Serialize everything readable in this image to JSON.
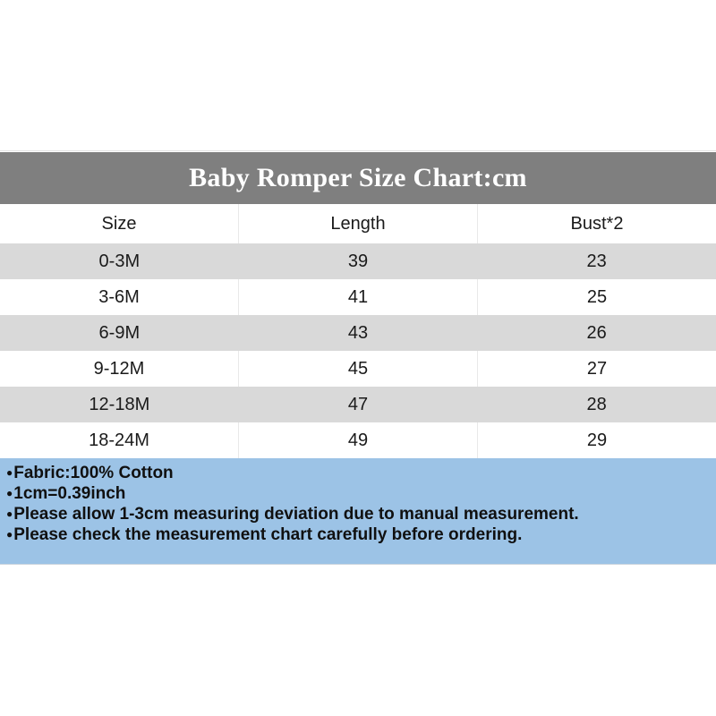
{
  "title": "Baby Romper Size Chart:cm",
  "table": {
    "headers": [
      "Size",
      "Length",
      "Bust*2"
    ],
    "rows": [
      {
        "size": "0-3M",
        "length": "39",
        "bust": "23"
      },
      {
        "size": "3-6M",
        "length": "41",
        "bust": "25"
      },
      {
        "size": "6-9M",
        "length": "43",
        "bust": "26"
      },
      {
        "size": "9-12M",
        "length": "45",
        "bust": "27"
      },
      {
        "size": "12-18M",
        "length": "47",
        "bust": "28"
      },
      {
        "size": "18-24M",
        "length": "49",
        "bust": "29"
      }
    ]
  },
  "notes": {
    "bullet": "●",
    "lines": [
      "Fabric:100% Cotton",
      "1cm=0.39inch",
      "Please allow 1-3cm measuring deviation due to manual measurement.",
      "Please check the measurement chart carefully before ordering."
    ]
  },
  "colors": {
    "title_bar_bg": "#7f7f7f",
    "title_text": "#ffffff",
    "row_alt_bg": "#d9d9d9",
    "row_bg": "#ffffff",
    "notes_bg": "#9cc3e6",
    "body_text": "#1a1a1a"
  },
  "chart_data": {
    "type": "table",
    "title": "Baby Romper Size Chart:cm",
    "units": "cm",
    "columns": [
      "Size",
      "Length",
      "Bust*2"
    ],
    "rows": [
      [
        "0-3M",
        39,
        23
      ],
      [
        "3-6M",
        41,
        25
      ],
      [
        "6-9M",
        43,
        26
      ],
      [
        "9-12M",
        45,
        27
      ],
      [
        "12-18M",
        47,
        28
      ],
      [
        "18-24M",
        49,
        29
      ]
    ],
    "footnotes": [
      "Fabric:100% Cotton",
      "1cm=0.39inch",
      "Please allow 1-3cm measuring deviation due to manual measurement.",
      "Please check the measurement chart carefully before ordering."
    ]
  }
}
